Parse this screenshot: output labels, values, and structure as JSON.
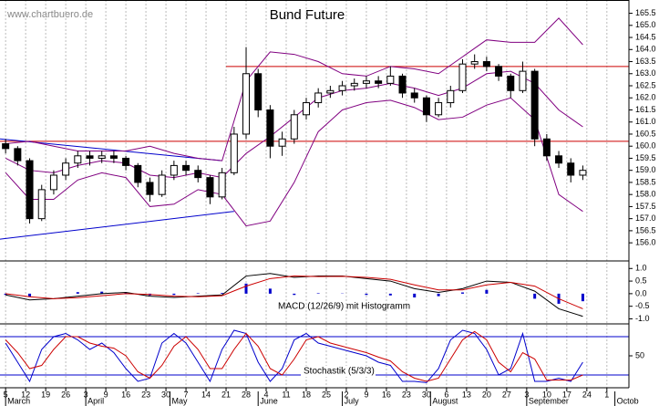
{
  "chart_data": [
    {
      "type": "candlestick",
      "title": "Bund Future",
      "source": "www.chartbuero.de",
      "xlim": [
        -1.4,
        155.5
      ],
      "ylim": [
        155.25,
        166.05
      ],
      "yticks": [
        {
          "value": 156,
          "label": "156.0"
        },
        {
          "value": 156.5,
          "label": "156.5"
        },
        {
          "value": 157,
          "label": "157.0"
        },
        {
          "value": 157.5,
          "label": "157.5"
        },
        {
          "value": 158,
          "label": "158.0"
        },
        {
          "value": 158.5,
          "label": "158.5"
        },
        {
          "value": 159,
          "label": "159.0"
        },
        {
          "value": 159.5,
          "label": "159.5"
        },
        {
          "value": 160,
          "label": "160.0"
        },
        {
          "value": 160.5,
          "label": "160.5"
        },
        {
          "value": 161,
          "label": "161.0"
        },
        {
          "value": 161.5,
          "label": "161.5"
        },
        {
          "value": 162,
          "label": "162.0"
        },
        {
          "value": 162.5,
          "label": "162.5"
        },
        {
          "value": 163,
          "label": "163.0"
        },
        {
          "value": 163.5,
          "label": "163.5"
        },
        {
          "value": 164,
          "label": "164.0"
        },
        {
          "value": 164.5,
          "label": "164.5"
        },
        {
          "value": 165,
          "label": "165.0"
        },
        {
          "value": 165.5,
          "label": "165.5"
        }
      ],
      "x": [
        0,
        3,
        6,
        9,
        12,
        15,
        18,
        21,
        24,
        27,
        30,
        33,
        36,
        39,
        42,
        45,
        48,
        51,
        54,
        57,
        60,
        63,
        66,
        69,
        72,
        75,
        78,
        81,
        84,
        87,
        90,
        93,
        96,
        99,
        102,
        105,
        108,
        111,
        114,
        117,
        120,
        123,
        126,
        129,
        132,
        135,
        138,
        141,
        144
      ],
      "candles": [
        [
          160.1,
          160.3,
          159.7,
          159.9
        ],
        [
          159.9,
          160.0,
          159.2,
          159.4
        ],
        [
          159.4,
          159.5,
          156.8,
          157.0
        ],
        [
          157.0,
          158.4,
          156.9,
          158.2
        ],
        [
          158.2,
          159.0,
          158.0,
          158.8
        ],
        [
          158.8,
          159.5,
          158.6,
          159.3
        ],
        [
          159.3,
          159.8,
          159.1,
          159.6
        ],
        [
          159.6,
          159.8,
          159.2,
          159.5
        ],
        [
          159.5,
          159.8,
          159.3,
          159.6
        ],
        [
          159.6,
          159.8,
          159.3,
          159.5
        ],
        [
          159.5,
          159.6,
          159.0,
          159.2
        ],
        [
          159.2,
          159.3,
          158.3,
          158.5
        ],
        [
          158.5,
          158.7,
          157.7,
          158.0
        ],
        [
          158.0,
          159.0,
          157.9,
          158.8
        ],
        [
          158.8,
          159.4,
          158.6,
          159.2
        ],
        [
          159.2,
          159.4,
          158.8,
          159.0
        ],
        [
          159.0,
          159.2,
          158.5,
          158.7
        ],
        [
          158.7,
          158.8,
          157.6,
          157.9
        ],
        [
          157.9,
          159.1,
          157.8,
          158.9
        ],
        [
          158.9,
          160.8,
          158.8,
          160.5
        ],
        [
          160.5,
          164.1,
          160.3,
          163.0
        ],
        [
          163.0,
          163.2,
          161.2,
          161.5
        ],
        [
          161.5,
          161.7,
          159.5,
          160.0
        ],
        [
          160.0,
          160.6,
          159.6,
          160.3
        ],
        [
          160.3,
          161.5,
          160.1,
          161.3
        ],
        [
          161.3,
          162.0,
          161.1,
          161.8
        ],
        [
          161.8,
          162.4,
          161.6,
          162.2
        ],
        [
          162.2,
          162.5,
          162.0,
          162.3
        ],
        [
          162.3,
          162.7,
          162.1,
          162.5
        ],
        [
          162.5,
          162.8,
          162.3,
          162.6
        ],
        [
          162.6,
          162.9,
          162.4,
          162.7
        ],
        [
          162.7,
          162.9,
          162.4,
          162.6
        ],
        [
          162.6,
          163.3,
          162.5,
          162.9
        ],
        [
          162.9,
          163.0,
          162.0,
          162.2
        ],
        [
          162.2,
          162.4,
          161.8,
          162.0
        ],
        [
          162.0,
          162.1,
          161.0,
          161.3
        ],
        [
          161.3,
          162.0,
          161.2,
          161.8
        ],
        [
          161.8,
          162.5,
          161.6,
          162.3
        ],
        [
          162.3,
          163.6,
          162.2,
          163.4
        ],
        [
          163.4,
          163.8,
          163.2,
          163.5
        ],
        [
          163.5,
          163.7,
          163.1,
          163.3
        ],
        [
          163.3,
          163.4,
          162.7,
          162.9
        ],
        [
          162.9,
          163.0,
          162.0,
          162.3
        ],
        [
          162.3,
          163.5,
          162.2,
          163.1
        ],
        [
          163.1,
          163.2,
          160.0,
          160.3
        ],
        [
          160.3,
          160.5,
          159.4,
          159.6
        ],
        [
          159.6,
          159.8,
          159.1,
          159.3
        ],
        [
          159.3,
          159.5,
          158.5,
          158.8
        ],
        [
          158.8,
          159.2,
          158.6,
          159.0
        ]
      ],
      "band_x": [
        0,
        6,
        12,
        18,
        24,
        30,
        36,
        42,
        48,
        54,
        60,
        66,
        72,
        78,
        84,
        90,
        96,
        102,
        108,
        114,
        120,
        126,
        132,
        138,
        144
      ],
      "bands": [
        {
          "color": "#800080",
          "values": [
            160.1,
            160.2,
            160.0,
            159.8,
            159.8,
            159.8,
            160.0,
            159.7,
            159.5,
            159.4,
            162.7,
            163.9,
            163.8,
            163.5,
            163.0,
            162.9,
            163.3,
            163.2,
            163.0,
            163.7,
            164.4,
            164.3,
            164.3,
            165.3,
            164.2
          ]
        },
        {
          "color": "#800080",
          "values": [
            159.5,
            159.0,
            158.9,
            159.2,
            159.4,
            159.3,
            158.8,
            158.7,
            158.9,
            158.7,
            159.7,
            160.4,
            161.2,
            162.0,
            162.3,
            162.4,
            162.6,
            162.4,
            162.1,
            162.4,
            163.0,
            163.1,
            162.6,
            161.5,
            160.8
          ]
        },
        {
          "color": "#800080",
          "values": [
            158.9,
            157.8,
            157.8,
            158.6,
            158.9,
            158.7,
            157.5,
            157.6,
            158.2,
            158.0,
            156.7,
            156.9,
            158.5,
            160.6,
            161.5,
            161.8,
            161.9,
            161.6,
            161.1,
            161.2,
            161.7,
            162.0,
            161.1,
            158.0,
            157.3
          ]
        }
      ],
      "hlines": [
        {
          "value": 163.3,
          "x": [
            55,
            155.5
          ],
          "color": "#cc0000"
        },
        {
          "value": 160.2,
          "x": [
            -1.4,
            155.5
          ],
          "color": "#cc0000"
        }
      ],
      "trendlines": [
        {
          "x": [
            -1.4,
            54
          ],
          "y": [
            160.3,
            159.4
          ],
          "color": "#0000cc"
        },
        {
          "x": [
            -1.4,
            57
          ],
          "y": [
            156.15,
            157.3
          ],
          "color": "#0000cc"
        }
      ]
    },
    {
      "type": "macd",
      "label": "MACD (12/26/9) mit Histogramm",
      "ylim": [
        -1.2,
        1.3
      ],
      "yticks": [
        {
          "value": 1,
          "label": "1.0"
        },
        {
          "value": 0.5,
          "label": "0.5"
        },
        {
          "value": 0,
          "label": "0.0"
        },
        {
          "value": -0.5,
          "label": "-0.5"
        },
        {
          "value": -1,
          "label": "-1.0"
        }
      ],
      "x": [
        0,
        6,
        12,
        18,
        24,
        30,
        36,
        42,
        48,
        54,
        60,
        66,
        72,
        78,
        84,
        90,
        96,
        102,
        108,
        114,
        120,
        126,
        132,
        138,
        144
      ],
      "series": [
        {
          "color": "#000000",
          "values": [
            -0.05,
            -0.25,
            -0.2,
            -0.1,
            0.0,
            0.05,
            -0.1,
            -0.15,
            -0.1,
            -0.05,
            0.7,
            0.8,
            0.65,
            0.7,
            0.7,
            0.6,
            0.5,
            0.2,
            0.05,
            0.2,
            0.5,
            0.45,
            0.1,
            -0.6,
            -0.9
          ]
        },
        {
          "color": "#cc0000",
          "values": [
            0.0,
            -0.12,
            -0.2,
            -0.16,
            -0.08,
            0.0,
            -0.03,
            -0.1,
            -0.12,
            -0.08,
            0.3,
            0.6,
            0.7,
            0.68,
            0.69,
            0.65,
            0.57,
            0.35,
            0.15,
            0.15,
            0.35,
            0.45,
            0.3,
            -0.2,
            -0.6
          ]
        }
      ],
      "histogram": {
        "color": "#0000cc",
        "values": [
          -0.05,
          -0.13,
          0,
          0.06,
          0.08,
          0.05,
          -0.07,
          -0.05,
          0.02,
          0.03,
          0.4,
          0.2,
          -0.05,
          0.02,
          0.01,
          -0.05,
          -0.07,
          -0.15,
          -0.1,
          0.05,
          0.15,
          0,
          -0.2,
          -0.4,
          -0.3
        ]
      }
    },
    {
      "type": "stochastic",
      "label": "Stochastik (5/3/3)",
      "ylim": [
        0,
        100
      ],
      "yticks": [
        50
      ],
      "levels": [
        80,
        20
      ],
      "level_color": "#0000cc",
      "x": [
        0,
        3,
        6,
        9,
        12,
        15,
        18,
        21,
        24,
        27,
        30,
        33,
        36,
        39,
        42,
        45,
        48,
        51,
        54,
        57,
        60,
        63,
        66,
        69,
        72,
        75,
        78,
        81,
        84,
        87,
        90,
        93,
        96,
        99,
        102,
        105,
        108,
        111,
        114,
        117,
        120,
        123,
        126,
        129,
        132,
        135,
        138,
        141,
        144
      ],
      "series": [
        {
          "color": "#0000cc",
          "values": [
            70,
            40,
            10,
            60,
            80,
            85,
            75,
            60,
            70,
            55,
            30,
            10,
            15,
            70,
            85,
            70,
            40,
            10,
            60,
            90,
            85,
            40,
            10,
            30,
            75,
            85,
            70,
            65,
            60,
            55,
            50,
            40,
            35,
            10,
            10,
            8,
            30,
            75,
            90,
            85,
            60,
            20,
            30,
            85,
            10,
            10,
            15,
            10,
            40
          ]
        },
        {
          "color": "#cc0000",
          "values": [
            75,
            55,
            30,
            35,
            60,
            80,
            80,
            70,
            65,
            62,
            50,
            25,
            15,
            35,
            65,
            80,
            60,
            30,
            30,
            60,
            85,
            65,
            30,
            20,
            45,
            75,
            80,
            70,
            65,
            60,
            55,
            48,
            42,
            25,
            15,
            10,
            15,
            45,
            75,
            88,
            75,
            40,
            25,
            55,
            45,
            12,
            12,
            12,
            20
          ]
        }
      ],
      "xticks": [
        {
          "value": 0,
          "label": "5"
        },
        {
          "value": 5,
          "label": "12"
        },
        {
          "value": 10,
          "label": "19"
        },
        {
          "value": 15,
          "label": "26"
        },
        {
          "value": 20,
          "label": "3"
        },
        {
          "value": 25,
          "label": "9"
        },
        {
          "value": 30,
          "label": "16"
        },
        {
          "value": 35,
          "label": "23"
        },
        {
          "value": 40,
          "label": "30"
        },
        {
          "value": 45,
          "label": "7"
        },
        {
          "value": 50,
          "label": "14"
        },
        {
          "value": 55,
          "label": "21"
        },
        {
          "value": 60,
          "label": "28"
        },
        {
          "value": 65,
          "label": "4"
        },
        {
          "value": 70,
          "label": "11"
        },
        {
          "value": 75,
          "label": "18"
        },
        {
          "value": 80,
          "label": "25"
        },
        {
          "value": 85,
          "label": "2"
        },
        {
          "value": 90,
          "label": "9"
        },
        {
          "value": 95,
          "label": "16"
        },
        {
          "value": 100,
          "label": "23"
        },
        {
          "value": 105,
          "label": "30"
        },
        {
          "value": 110,
          "label": "6"
        },
        {
          "value": 115,
          "label": "13"
        },
        {
          "value": 120,
          "label": "20"
        },
        {
          "value": 125,
          "label": "27"
        },
        {
          "value": 130,
          "label": "3"
        },
        {
          "value": 135,
          "label": "10"
        },
        {
          "value": 140,
          "label": "17"
        },
        {
          "value": 145,
          "label": "24"
        },
        {
          "value": 150,
          "label": "1"
        }
      ],
      "months": [
        {
          "value": 0,
          "label": "March"
        },
        {
          "value": 20,
          "label": "April"
        },
        {
          "value": 41,
          "label": "May"
        },
        {
          "value": 63,
          "label": "June"
        },
        {
          "value": 84,
          "label": "July"
        },
        {
          "value": 106,
          "label": "August"
        },
        {
          "value": 130,
          "label": "September"
        },
        {
          "value": 152,
          "label": "Octob"
        }
      ]
    }
  ]
}
